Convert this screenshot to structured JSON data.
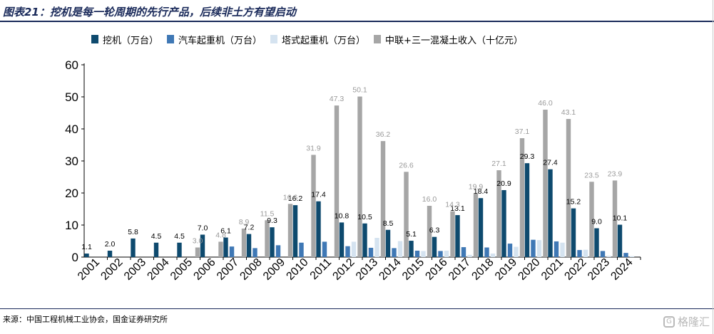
{
  "header": {
    "title": "图表21：挖机是每一轮周期的先行产品，后续非土方有望启动"
  },
  "footer": {
    "source": "来源：中国工程机械工业协会，国金证券研究所",
    "watermark": "格隆汇"
  },
  "chart_data": {
    "type": "bar",
    "categories": [
      "2001",
      "2002",
      "2003",
      "2004",
      "2005",
      "2006",
      "2007",
      "2008",
      "2009",
      "2010",
      "2011",
      "2012",
      "2013",
      "2014",
      "2015",
      "2016",
      "2017",
      "2018",
      "2019",
      "2020",
      "2021",
      "2022",
      "2023",
      "2024"
    ],
    "ylim": [
      0,
      60
    ],
    "yticks": [
      0,
      10,
      20,
      30,
      40,
      50,
      60
    ],
    "grid": false,
    "legend_position": "top",
    "series": [
      {
        "name": "挖机（万台）",
        "color": "#0e4a6e",
        "label_color": "#000000",
        "values": [
          1.1,
          2.0,
          5.8,
          4.5,
          4.5,
          7.0,
          6.1,
          7.2,
          9.3,
          16.2,
          17.4,
          10.8,
          10.5,
          8.5,
          5.1,
          6.3,
          13.1,
          18.4,
          20.9,
          29.3,
          27.4,
          15.2,
          9.0,
          10.1
        ],
        "labels": [
          "1.1",
          "2.0",
          "5.8",
          "4.5",
          "4.5",
          "7.0",
          "6.1",
          "7.2",
          "9.3",
          "16.2",
          "17.4",
          "10.8",
          "10.5",
          "8.5",
          "5.1",
          "6.3",
          "13.1",
          "18.4",
          "20.9",
          "29.3",
          "27.4",
          "15.2",
          "9.0",
          "10.1"
        ]
      },
      {
        "name": "汽车起重机（万台）",
        "color": "#3f78b5",
        "values": [
          0,
          0,
          0,
          0,
          0,
          0,
          3.3,
          2.8,
          3.7,
          4.5,
          4.8,
          3.4,
          2.9,
          2.8,
          2.0,
          1.9,
          3.1,
          3.0,
          4.2,
          5.4,
          4.9,
          2.2,
          1.9,
          1.3
        ]
      },
      {
        "name": "塔式起重机（万台）",
        "color": "#d5e3f0",
        "values": [
          0,
          0,
          0,
          0,
          0,
          0,
          0,
          0,
          0,
          0,
          0,
          4.8,
          6.0,
          5.0,
          1.9,
          2.0,
          0.7,
          1.1,
          3.2,
          5.3,
          4.5,
          2.3,
          0.4,
          0.3
        ]
      },
      {
        "name": "中联+三一混凝土收入（十亿元）",
        "color": "#a6a6a6",
        "label_color": "#9a9a9a",
        "values": [
          0,
          0,
          0,
          0,
          3.0,
          4.8,
          8.9,
          11.5,
          16.6,
          31.9,
          47.3,
          50.1,
          36.2,
          26.6,
          16.0,
          14.3,
          19.9,
          27.1,
          37.1,
          46.0,
          43.1,
          23.5,
          23.9,
          0
        ],
        "labels": [
          "",
          "",
          "",
          "",
          "3.0",
          "4.8",
          "8.9",
          "11.5",
          "16.6",
          "31.9",
          "47.3",
          "50.1",
          "36.2",
          "26.6",
          "16.0",
          "14.3",
          "19.9",
          "27.1",
          "37.1",
          "46.0",
          "43.1",
          "23.5",
          "23.9",
          ""
        ]
      }
    ]
  }
}
